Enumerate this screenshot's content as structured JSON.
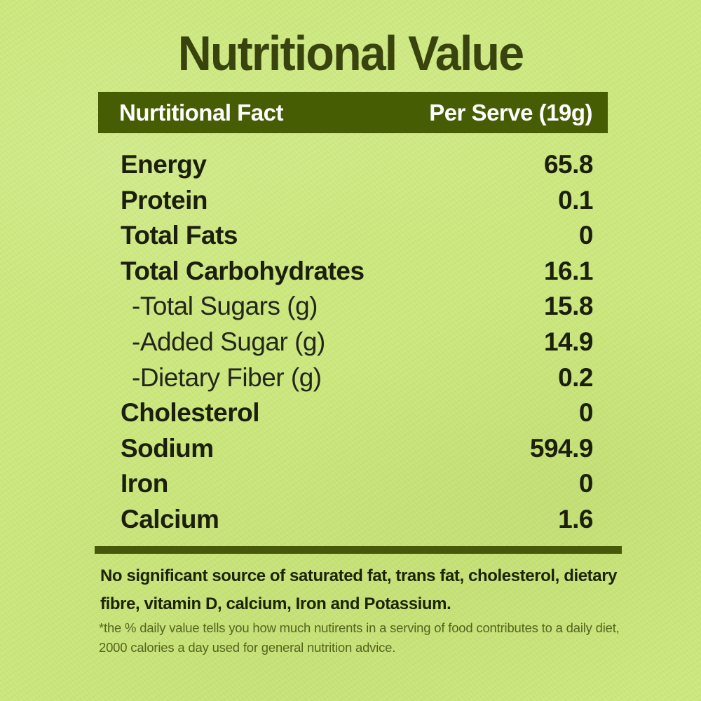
{
  "title": "Nutritional Value",
  "table": {
    "header": {
      "fact_label": "Nurtitional Fact",
      "serve_label": "Per Serve (19g)"
    },
    "rows": [
      {
        "label": "Energy",
        "value": "65.8",
        "sub": false
      },
      {
        "label": "Protein",
        "value": "0.1",
        "sub": false
      },
      {
        "label": "Total Fats",
        "value": "0",
        "sub": false
      },
      {
        "label": "Total Carbohydrates",
        "value": "16.1",
        "sub": false
      },
      {
        "label": "-Total Sugars (g)",
        "value": "15.8",
        "sub": true
      },
      {
        "label": "-Added Sugar (g)",
        "value": "14.9",
        "sub": true
      },
      {
        "label": "-Dietary Fiber (g)",
        "value": "0.2",
        "sub": true
      },
      {
        "label": "Cholesterol",
        "value": "0",
        "sub": false
      },
      {
        "label": "Sodium",
        "value": "594.9",
        "sub": false
      },
      {
        "label": "Iron",
        "value": "0",
        "sub": false
      },
      {
        "label": "Calcium",
        "value": "1.6",
        "sub": false
      }
    ]
  },
  "footnotes": {
    "bold_note": "No significant source of saturated fat, trans fat, cholesterol, dietary fibre, vitamin D, calcium, Iron and Potassium.",
    "fine_print": "*the % daily value tells you how much nutirents in a serving of food contributes to a daily diet, 2000 calories a day used for general nutrition advice."
  },
  "colors": {
    "background": "#cce87d",
    "header_bar": "#475d04",
    "header_text": "#ffffff",
    "title_text": "#39430e",
    "row_text": "#1c1f0c",
    "divider": "#46590a",
    "note_text": "#1c2404",
    "fine_print_text": "#55641e"
  }
}
